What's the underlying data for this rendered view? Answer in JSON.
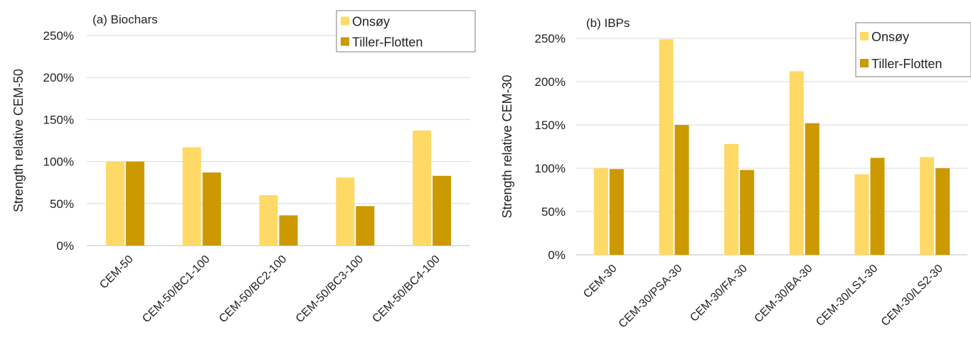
{
  "chart_data": [
    {
      "type": "bar",
      "title": "(a) Biochars",
      "ylabel": "Strength relative CEM-50",
      "xlabel": "",
      "categories": [
        "CEM-50",
        "CEM-50/BC1-100",
        "CEM-50/BC2-100",
        "CEM-50/BC3-100",
        "CEM-50/BC4-100"
      ],
      "series": [
        {
          "name": "Onsøy",
          "values": [
            100,
            117,
            60,
            81,
            137
          ]
        },
        {
          "name": "Tiller-Flotten",
          "values": [
            100,
            87,
            36,
            47,
            83
          ]
        }
      ],
      "ylim": [
        0,
        250
      ],
      "yticks": [
        "0%",
        "50%",
        "100%",
        "150%",
        "200%",
        "250%"
      ],
      "grid": true,
      "legend": "top-right"
    },
    {
      "type": "bar",
      "title": "(b) IBPs",
      "ylabel": "Strength relative CEM-30",
      "xlabel": "",
      "categories": [
        "CEM-30",
        "CEM-30/PSA-30",
        "CEM-30/FA-30",
        "CEM-30/BA-30",
        "CEM-30/LS1-30",
        "CEM-30/LS2-30"
      ],
      "series": [
        {
          "name": "Onsøy",
          "values": [
            100,
            249,
            128,
            212,
            93,
            113
          ]
        },
        {
          "name": "Tiller-Flotten",
          "values": [
            99,
            150,
            98,
            152,
            112,
            100
          ]
        }
      ],
      "ylim": [
        0,
        250
      ],
      "yticks": [
        "0%",
        "50%",
        "100%",
        "150%",
        "200%",
        "250%"
      ],
      "grid": true,
      "legend": "top-right"
    }
  ],
  "colors": {
    "onsoy": "#ffd966",
    "tiller": "#cc9900",
    "grid": "#d9d9d9",
    "axis": "#bfbfbf"
  }
}
